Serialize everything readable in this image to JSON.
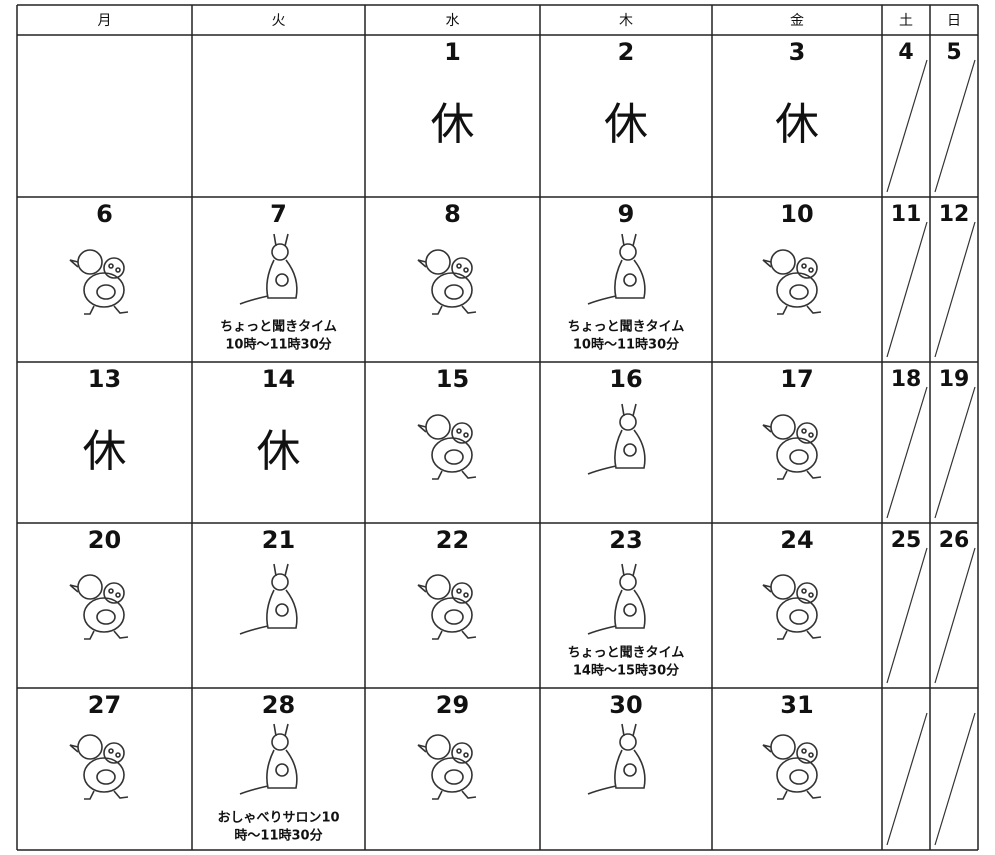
{
  "header": [
    "月",
    "火",
    "水",
    "木",
    "金",
    "土",
    "日"
  ],
  "weeks": [
    [
      null,
      null,
      {
        "day": 1,
        "mark": "休"
      },
      {
        "day": 2,
        "mark": "休"
      },
      {
        "day": 3,
        "mark": "休"
      },
      {
        "day": 4
      },
      {
        "day": 5
      }
    ],
    [
      {
        "day": 6
      },
      {
        "day": 7,
        "note": [
          "ちょっと聞きタイム",
          "10時～11時30分"
        ]
      },
      {
        "day": 8
      },
      {
        "day": 9,
        "note": [
          "ちょっと聞きタイム",
          "10時～11時30分"
        ]
      },
      {
        "day": 10
      },
      {
        "day": 11
      },
      {
        "day": 12
      }
    ],
    [
      {
        "day": 13,
        "mark": "休"
      },
      {
        "day": 14,
        "mark": "休"
      },
      {
        "day": 15
      },
      {
        "day": 16
      },
      {
        "day": 17
      },
      {
        "day": 18
      },
      {
        "day": 19
      }
    ],
    [
      {
        "day": 20
      },
      {
        "day": 21
      },
      {
        "day": 22
      },
      {
        "day": 23,
        "note": [
          "ちょっと聞きタイム",
          "14時～15時30分"
        ]
      },
      {
        "day": 24
      },
      {
        "day": 25
      },
      {
        "day": 26
      }
    ],
    [
      {
        "day": 27
      },
      {
        "day": 28,
        "note": [
          "おしゃべりサロン10",
          "時～11時30分"
        ]
      },
      {
        "day": 29
      },
      {
        "day": 30
      },
      {
        "day": 31
      },
      null,
      null
    ]
  ]
}
